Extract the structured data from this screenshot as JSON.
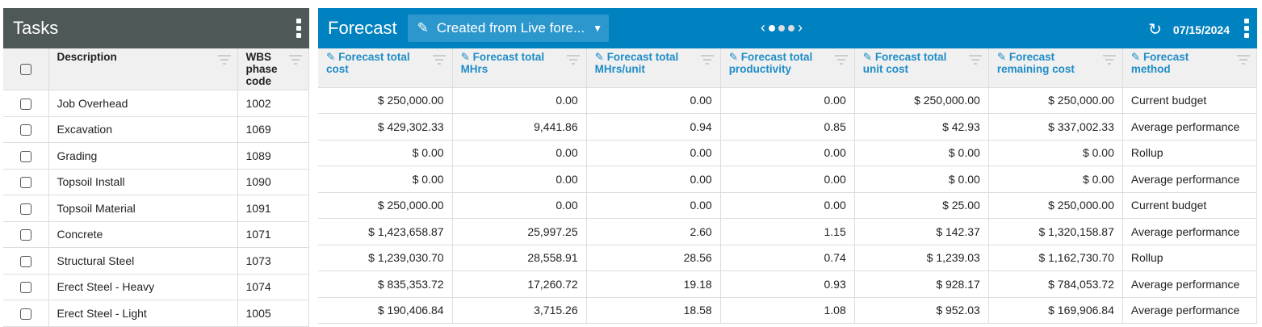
{
  "tasks": {
    "title": "Tasks",
    "columns": [
      "Description",
      "WBS phase code"
    ],
    "rows": [
      [
        "Job Overhead",
        "1002"
      ],
      [
        "Excavation",
        "1069"
      ],
      [
        "Grading",
        "1089"
      ],
      [
        "Topsoil Install",
        "1090"
      ],
      [
        "Topsoil Material",
        "1091"
      ],
      [
        "Concrete",
        "1071"
      ],
      [
        "Structural Steel",
        "1073"
      ],
      [
        "Erect Steel - Heavy",
        "1074"
      ],
      [
        "Erect Steel - Light",
        "1005"
      ]
    ]
  },
  "forecast": {
    "title": "Forecast",
    "scenario": "Created from Live fore...",
    "date": "07/15/2024",
    "accent": "#0081c0",
    "columns": [
      "Forecast total cost",
      "Forecast total MHrs",
      "Forecast total MHrs/unit",
      "Forecast total productivity",
      "Forecast total unit cost",
      "Forecast remaining cost",
      "Forecast method"
    ],
    "rows": [
      [
        "$ 250,000.00",
        "0.00",
        "0.00",
        "0.00",
        "$ 250,000.00",
        "$ 250,000.00",
        "Current budget"
      ],
      [
        "$ 429,302.33",
        "9,441.86",
        "0.94",
        "0.85",
        "$ 42.93",
        "$ 337,002.33",
        "Average performance"
      ],
      [
        "$ 0.00",
        "0.00",
        "0.00",
        "0.00",
        "$ 0.00",
        "$ 0.00",
        "Rollup"
      ],
      [
        "$ 0.00",
        "0.00",
        "0.00",
        "0.00",
        "$ 0.00",
        "$ 0.00",
        "Average performance"
      ],
      [
        "$ 250,000.00",
        "0.00",
        "0.00",
        "0.00",
        "$ 25.00",
        "$ 250,000.00",
        "Current budget"
      ],
      [
        "$ 1,423,658.87",
        "25,997.25",
        "2.60",
        "1.15",
        "$ 142.37",
        "$ 1,320,158.87",
        "Average performance"
      ],
      [
        "$ 1,239,030.70",
        "28,558.91",
        "28.56",
        "0.74",
        "$ 1,239.03",
        "$ 1,162,730.70",
        "Rollup"
      ],
      [
        "$ 835,353.72",
        "17,260.72",
        "19.18",
        "0.93",
        "$ 928.17",
        "$ 784,053.72",
        "Average performance"
      ],
      [
        "$ 190,406.84",
        "3,715.26",
        "18.58",
        "1.08",
        "$ 952.03",
        "$ 169,906.84",
        "Average performance"
      ]
    ]
  }
}
